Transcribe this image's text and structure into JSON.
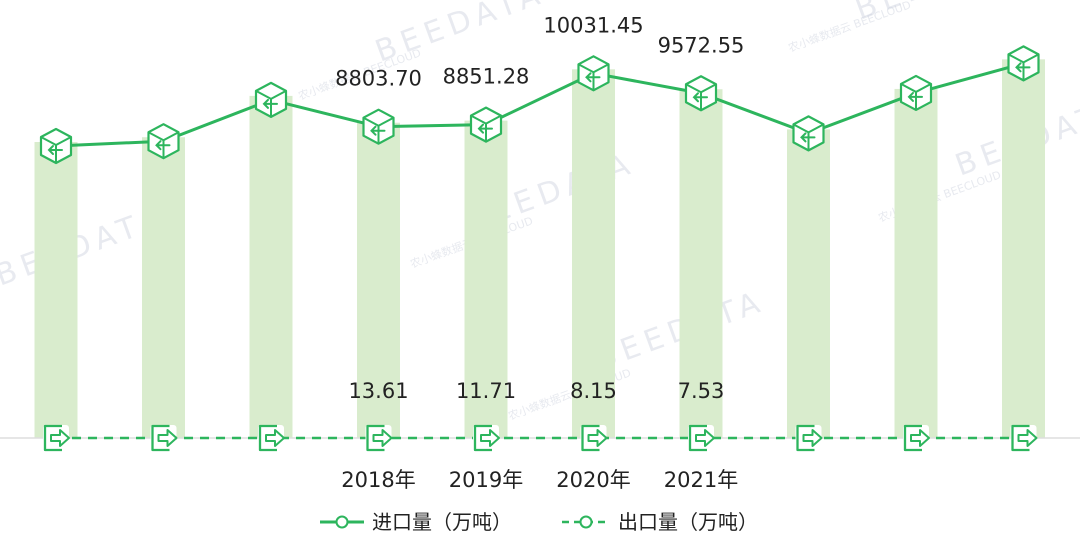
{
  "chart_data": {
    "type": "bar",
    "categories": [
      "",
      "",
      "",
      "2018年",
      "2019年",
      "2020年",
      "2021年",
      "",
      "",
      ""
    ],
    "series": [
      {
        "name": "进口量（万吨）",
        "render": "bar+line",
        "values": [
          8360,
          8470,
          9420,
          8803.7,
          8851.28,
          10031.45,
          9572.55,
          8650,
          9580,
          10260
        ],
        "labels": [
          "",
          "",
          "",
          "8803.70",
          "8851.28",
          "10031.45",
          "9572.55",
          "",
          "",
          ""
        ]
      },
      {
        "name": "出口量（万吨）",
        "render": "dashed-line",
        "values": [
          15,
          15,
          14,
          13.61,
          11.71,
          8.15,
          7.53,
          7,
          6,
          6
        ],
        "labels": [
          "",
          "",
          "",
          "13.61",
          "11.71",
          "8.15",
          "7.53",
          "",
          "",
          ""
        ]
      }
    ],
    "legend": {
      "position": "bottom"
    },
    "grid": false,
    "colors": {
      "line": "#2db55d",
      "bar": "#d9eccd",
      "axis": "#dddddd",
      "text": "#222222"
    },
    "icons": {
      "import_marker": "box-arrow-in-icon",
      "export_marker": "door-arrow-out-icon"
    }
  },
  "watermark": {
    "brand": "BEEDATA",
    "sub_cn": "农小蜂数据云",
    "sub_en": "BEECLOUD"
  }
}
